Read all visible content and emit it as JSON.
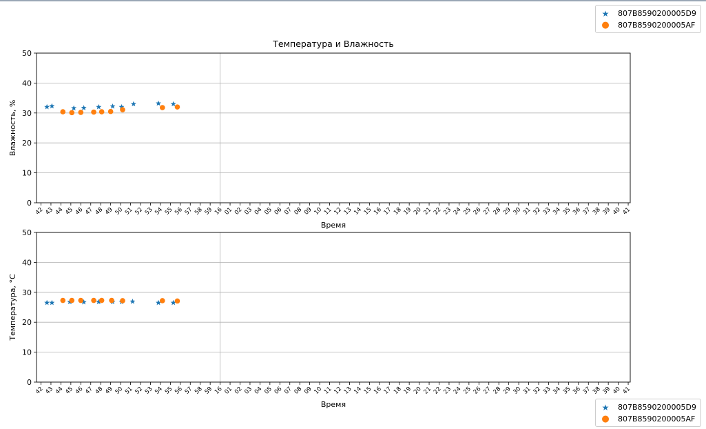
{
  "colors": {
    "series1": "#1f77b4",
    "series2": "#ff7f0e",
    "grid": "#b0b0b0",
    "axis": "#000000"
  },
  "legend": {
    "entries": [
      {
        "label": "807B8590200005D9",
        "marker": "star-icon"
      },
      {
        "label": "807B8590200005AF",
        "marker": "circle-icon"
      }
    ]
  },
  "x_ticks": [
    "42",
    "43",
    "44",
    "45",
    "46",
    "47",
    "48",
    "49",
    "50",
    "51",
    "52",
    "53",
    "54",
    "55",
    "56",
    "57",
    "58",
    "59",
    "16",
    "01",
    "02",
    "03",
    "04",
    "05",
    "06",
    "07",
    "08",
    "09",
    "10",
    "11",
    "12",
    "13",
    "14",
    "15",
    "16",
    "17",
    "18",
    "19",
    "20",
    "21",
    "22",
    "23",
    "24",
    "25",
    "26",
    "27",
    "28",
    "29",
    "30",
    "31",
    "32",
    "33",
    "34",
    "35",
    "36",
    "37",
    "38",
    "39",
    "40",
    "41"
  ],
  "chart_data": [
    {
      "type": "scatter",
      "title": "Температура и Влажность",
      "xlabel": "Время",
      "ylabel": "Влажность, %",
      "ylim": [
        0,
        50
      ],
      "yticks": [
        "0",
        "10",
        "20",
        "30",
        "40",
        "50"
      ],
      "grid": "horizontal",
      "series": [
        {
          "name": "807B8590200005D9",
          "marker": "star",
          "x": [
            42.6,
            43.1,
            45.3,
            46.3,
            47.8,
            49.2,
            50.1,
            51.3,
            53.8,
            55.3
          ],
          "y": [
            32,
            32.3,
            31.6,
            31.7,
            32,
            32.2,
            32,
            33,
            33.2,
            33
          ]
        },
        {
          "name": "807B8590200005AF",
          "marker": "circle",
          "x": [
            44.2,
            45.1,
            46,
            47.3,
            48.1,
            49,
            50.2,
            54.2,
            55.7
          ],
          "y": [
            30.4,
            30.1,
            30.2,
            30.3,
            30.4,
            30.5,
            31.1,
            31.8,
            32
          ]
        }
      ]
    },
    {
      "type": "scatter",
      "title": "",
      "xlabel": "Время",
      "ylabel": "Температура, °C",
      "ylim": [
        0,
        50
      ],
      "yticks": [
        "0",
        "10",
        "20",
        "30",
        "40",
        "50"
      ],
      "grid": "horizontal",
      "series": [
        {
          "name": "807B8590200005D9",
          "marker": "star",
          "x": [
            42.6,
            43.1,
            44.9,
            46.3,
            47.8,
            49.2,
            50.1,
            51.2,
            53.8,
            55.3
          ],
          "y": [
            26.5,
            26.5,
            26.8,
            26.7,
            26.8,
            26.8,
            26.8,
            26.9,
            26.5,
            26.5
          ]
        },
        {
          "name": "807B8590200005AF",
          "marker": "circle",
          "x": [
            44.2,
            45.1,
            46,
            47.3,
            48.1,
            49.1,
            50.2,
            54.2,
            55.7
          ],
          "y": [
            27.3,
            27.3,
            27.3,
            27.3,
            27.3,
            27.3,
            27.2,
            27.2,
            27.1
          ]
        }
      ]
    }
  ]
}
